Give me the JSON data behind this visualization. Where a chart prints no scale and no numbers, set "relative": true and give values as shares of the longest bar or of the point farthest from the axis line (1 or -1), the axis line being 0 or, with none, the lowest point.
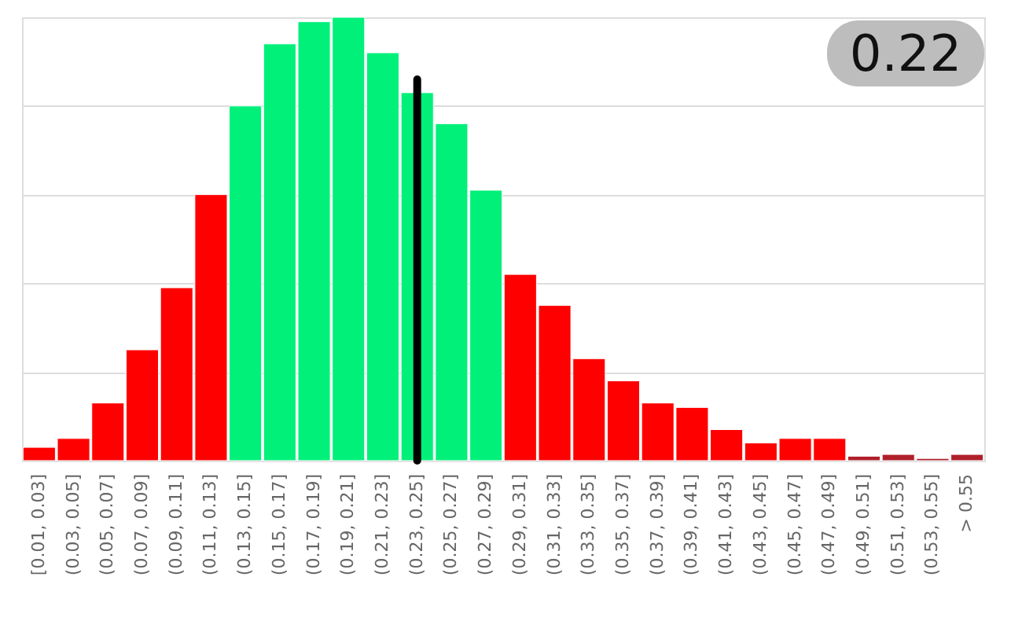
{
  "chart_data": {
    "type": "bar",
    "relative": true,
    "grid": "y",
    "categories": [
      "[0.01, 0.03]",
      "(0.03, 0.05]",
      "(0.05, 0.07]",
      "(0.07, 0.09]",
      "(0.09, 0.11]",
      "(0.11, 0.13]",
      "(0.13, 0.15]",
      "(0.15, 0.17]",
      "(0.17, 0.19]",
      "(0.19, 0.21]",
      "(0.21, 0.23]",
      "(0.23, 0.25]",
      "(0.25, 0.27]",
      "(0.27, 0.29]",
      "(0.29, 0.31]",
      "(0.31, 0.33]",
      "(0.33, 0.35]",
      "(0.35, 0.37]",
      "(0.37, 0.39]",
      "(0.39, 0.41]",
      "(0.41, 0.43]",
      "(0.43, 0.45]",
      "(0.45, 0.47]",
      "(0.47, 0.49]",
      "(0.49, 0.51]",
      "(0.51, 0.53]",
      "(0.53, 0.55]",
      "> 0.55"
    ],
    "values": [
      0.03,
      0.05,
      0.13,
      0.25,
      0.39,
      0.6,
      0.8,
      0.94,
      0.99,
      1,
      0.92,
      0.83,
      0.76,
      0.61,
      0.42,
      0.35,
      0.23,
      0.18,
      0.13,
      0.12,
      0.07,
      0.04,
      0.05,
      0.05,
      0.01,
      0.014,
      0.005,
      0.014
    ],
    "colors": [
      "#ff0000",
      "#ff0000",
      "#ff0000",
      "#ff0000",
      "#ff0000",
      "#ff0000",
      "#00f07a",
      "#00f07a",
      "#00f07a",
      "#00f07a",
      "#00f07a",
      "#00f07a",
      "#00f07a",
      "#00f07a",
      "#ff0000",
      "#ff0000",
      "#ff0000",
      "#ff0000",
      "#ff0000",
      "#ff0000",
      "#ff0000",
      "#ff0000",
      "#ff0000",
      "#ff0000",
      "#b0202a",
      "#b0202a",
      "#b0202a",
      "#b0202a"
    ],
    "ref_lines": [
      {
        "axis": "x",
        "value": "(0.23, 0.25]",
        "color": "#000000"
      }
    ],
    "annotations": [
      "0.22"
    ]
  }
}
